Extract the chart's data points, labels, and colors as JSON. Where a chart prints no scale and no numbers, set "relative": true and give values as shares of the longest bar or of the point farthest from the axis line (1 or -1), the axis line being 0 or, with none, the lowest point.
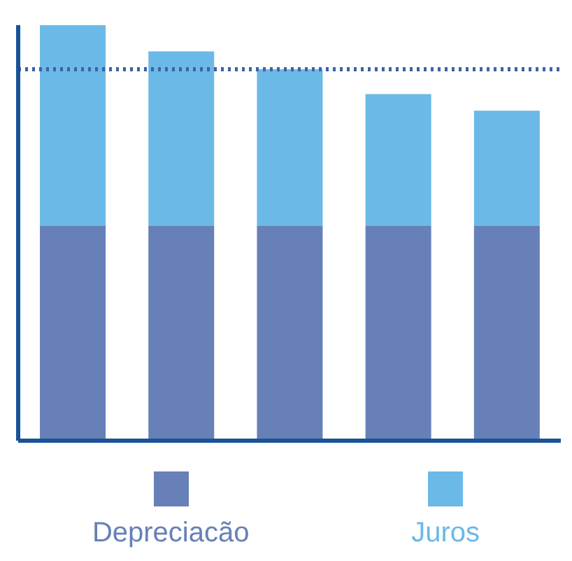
{
  "chart_data": {
    "type": "bar",
    "stacked": true,
    "relative": true,
    "categories": [
      null,
      null,
      null,
      null,
      null
    ],
    "series": [
      {
        "name": "Depreciacão",
        "color": "#6780b7",
        "values": [
          0.517,
          0.517,
          0.517,
          0.517,
          0.517
        ]
      },
      {
        "name": "Juros",
        "color": "#6bb9e7",
        "values": [
          0.483,
          0.42,
          0.377,
          0.317,
          0.277
        ]
      }
    ],
    "ref_lines": [
      {
        "axis": "y",
        "value": 0.894,
        "color": "#3f62a8",
        "line_style": "dotted"
      }
    ],
    "legend": "bottom",
    "grid": false
  }
}
